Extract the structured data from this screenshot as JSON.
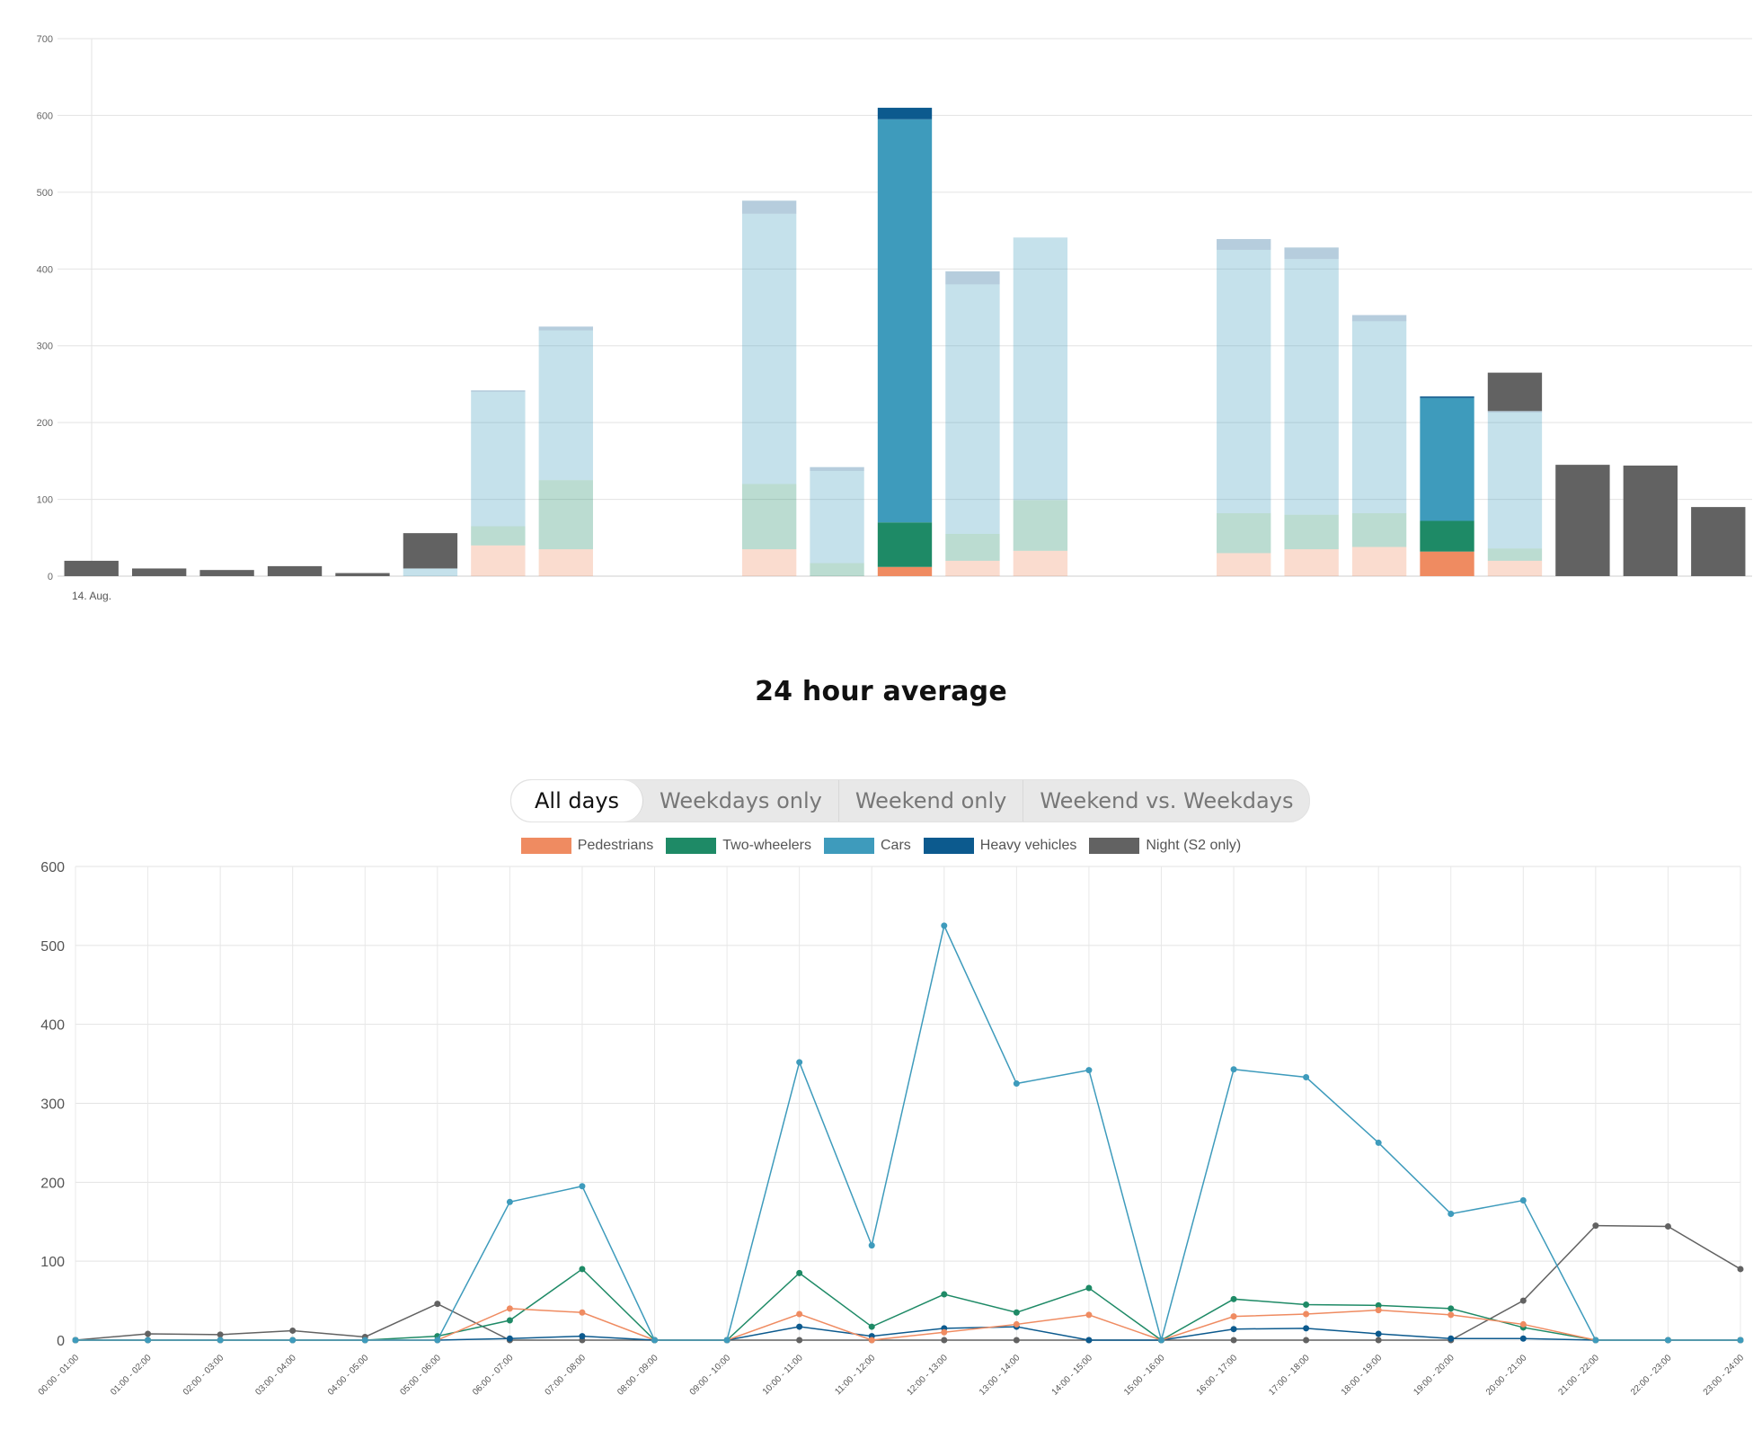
{
  "title": "24 hour average",
  "tabs": [
    {
      "label": "All days",
      "active": true
    },
    {
      "label": "Weekdays only",
      "active": false
    },
    {
      "label": "Weekend only",
      "active": false
    },
    {
      "label": "Weekend vs. Weekdays",
      "active": false
    }
  ],
  "chart_data": [
    {
      "type": "bar",
      "stacked": true,
      "x_start_label": "14. Aug.",
      "ylim": [
        0,
        700
      ],
      "yticks": [
        0,
        100,
        200,
        300,
        400,
        500,
        600,
        700
      ],
      "grid": true,
      "highlighted_bars": [
        12,
        20
      ],
      "series": [
        {
          "name": "Pedestrians",
          "color": "#ef8b61",
          "values": [
            0,
            0,
            0,
            0,
            0,
            0,
            40,
            35,
            0,
            0,
            35,
            0,
            12,
            20,
            33,
            0,
            0,
            30,
            35,
            38,
            32,
            20,
            0,
            0,
            0
          ]
        },
        {
          "name": "Two-wheelers",
          "color": "#1e8a66",
          "values": [
            0,
            0,
            0,
            0,
            0,
            0,
            25,
            90,
            0,
            0,
            85,
            17,
            58,
            35,
            66,
            0,
            0,
            52,
            45,
            44,
            40,
            16,
            0,
            0,
            0
          ]
        },
        {
          "name": "Cars",
          "color": "#3e9bbc",
          "values": [
            0,
            0,
            0,
            0,
            0,
            10,
            175,
            195,
            0,
            0,
            352,
            120,
            525,
            325,
            342,
            0,
            0,
            343,
            333,
            250,
            160,
            177,
            0,
            0,
            0
          ]
        },
        {
          "name": "Heavy vehicles",
          "color": "#0c5a8e",
          "values": [
            0,
            0,
            0,
            0,
            0,
            0,
            2,
            5,
            0,
            0,
            17,
            5,
            15,
            17,
            0,
            0,
            0,
            14,
            15,
            8,
            2,
            2,
            0,
            0,
            0
          ]
        },
        {
          "name": "Night (S2 only)",
          "color": "#626262",
          "values": [
            20,
            10,
            8,
            13,
            4,
            46,
            0,
            0,
            0,
            0,
            0,
            0,
            0,
            0,
            0,
            0,
            0,
            0,
            0,
            0,
            0,
            50,
            145,
            144,
            90
          ]
        }
      ]
    },
    {
      "type": "line",
      "categories": [
        "00:00 - 01:00",
        "01:00 - 02:00",
        "02:00 - 03:00",
        "03:00 - 04:00",
        "04:00 - 05:00",
        "05:00 - 06:00",
        "06:00 - 07:00",
        "07:00 - 08:00",
        "08:00 - 09:00",
        "09:00 - 10:00",
        "10:00 - 11:00",
        "11:00 - 12:00",
        "12:00 - 13:00",
        "13:00 - 14:00",
        "14:00 - 15:00",
        "15:00 - 16:00",
        "16:00 - 17:00",
        "17:00 - 18:00",
        "18:00 - 19:00",
        "19:00 - 20:00",
        "20:00 - 21:00",
        "21:00 - 22:00",
        "22:00 - 23:00",
        "23:00 - 24:00"
      ],
      "ylim": [
        0,
        600
      ],
      "yticks": [
        0,
        100,
        200,
        300,
        400,
        500,
        600
      ],
      "grid": true,
      "legend_position": "top-center",
      "series": [
        {
          "name": "Pedestrians",
          "color": "#ef8b61",
          "values": [
            0,
            0,
            0,
            0,
            0,
            0,
            40,
            35,
            0,
            0,
            33,
            0,
            10,
            20,
            32,
            0,
            30,
            33,
            38,
            32,
            20,
            0,
            0,
            0
          ]
        },
        {
          "name": "Two-wheelers",
          "color": "#1e8a66",
          "values": [
            0,
            0,
            0,
            0,
            0,
            5,
            25,
            90,
            0,
            0,
            85,
            17,
            58,
            35,
            66,
            0,
            52,
            45,
            44,
            40,
            16,
            0,
            0,
            0
          ]
        },
        {
          "name": "Cars",
          "color": "#3e9bbc",
          "values": [
            0,
            0,
            0,
            0,
            0,
            0,
            175,
            195,
            0,
            0,
            352,
            120,
            525,
            325,
            342,
            0,
            343,
            333,
            250,
            160,
            177,
            0,
            0,
            0
          ]
        },
        {
          "name": "Heavy vehicles",
          "color": "#0c5a8e",
          "values": [
            0,
            0,
            0,
            0,
            0,
            0,
            2,
            5,
            0,
            0,
            17,
            5,
            15,
            17,
            0,
            0,
            14,
            15,
            8,
            2,
            2,
            0,
            0,
            0
          ]
        },
        {
          "name": "Night (S2 only)",
          "color": "#626262",
          "values": [
            0,
            8,
            7,
            12,
            4,
            46,
            0,
            0,
            0,
            0,
            0,
            0,
            0,
            0,
            0,
            0,
            0,
            0,
            0,
            0,
            50,
            145,
            144,
            90
          ]
        }
      ]
    }
  ]
}
